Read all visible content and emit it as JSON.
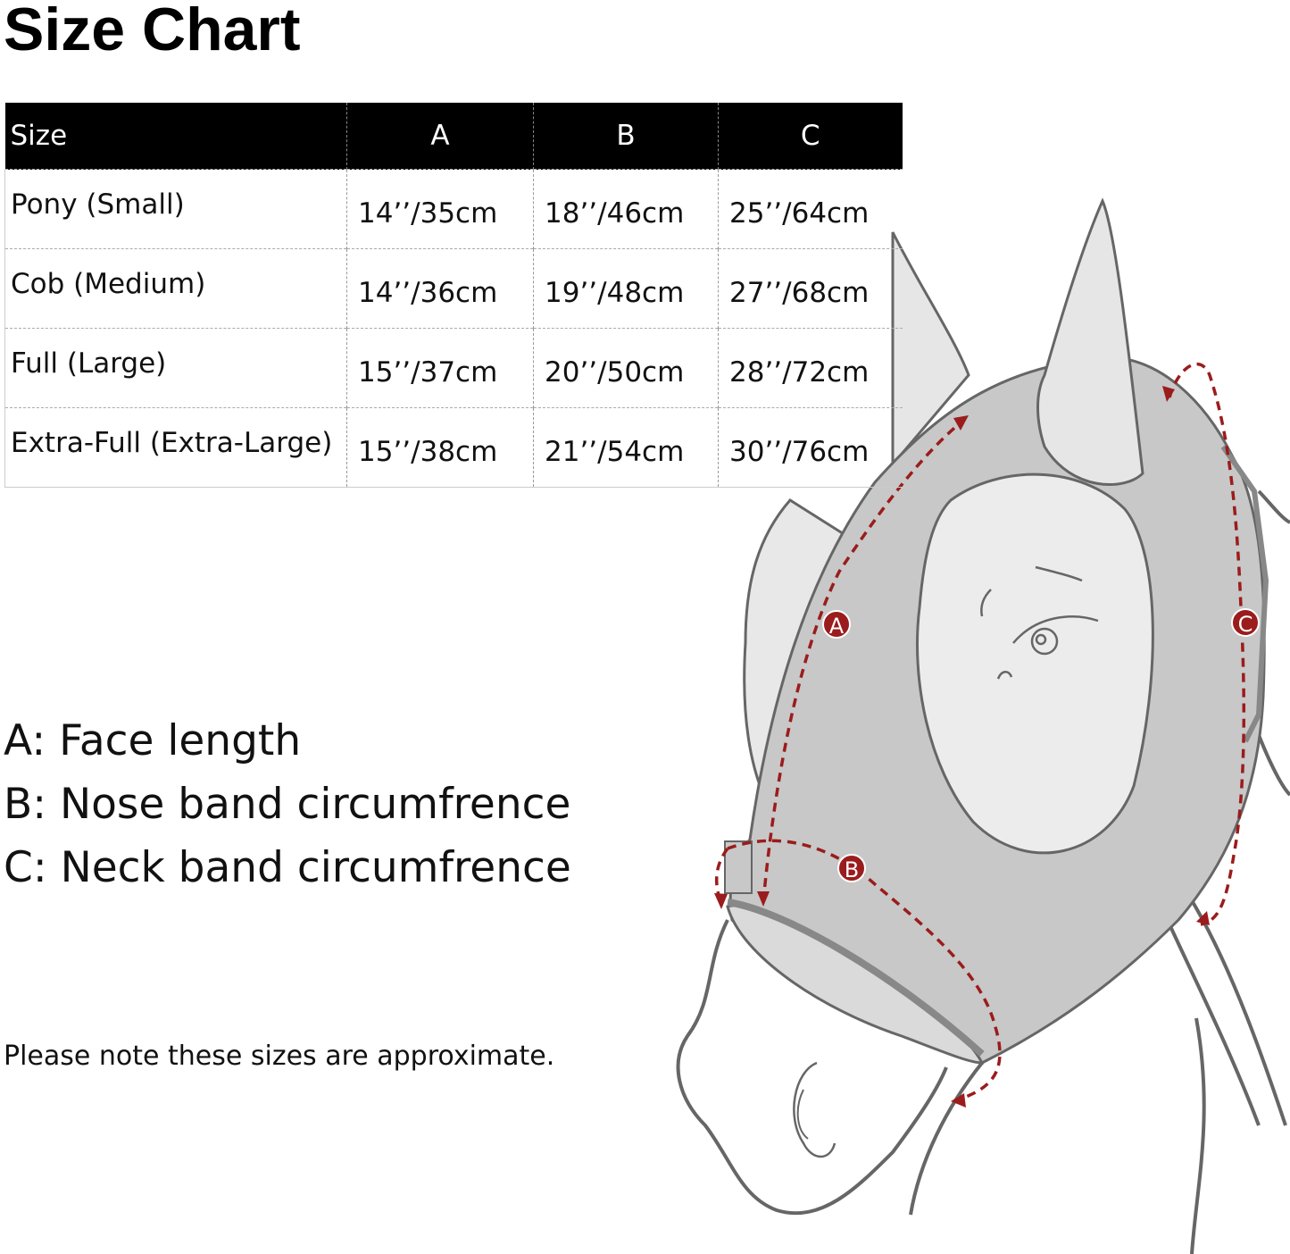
{
  "title": "Size Chart",
  "table": {
    "headers": [
      "Size",
      "A",
      "B",
      "C"
    ],
    "rows": [
      {
        "size": "Pony (Small)",
        "a": "14’’/35cm",
        "b": "18’’/46cm",
        "c": "25’’/64cm"
      },
      {
        "size": "Cob (Medium)",
        "a": "14’’/36cm",
        "b": "19’’/48cm",
        "c": "27’’/68cm"
      },
      {
        "size": "Full (Large)",
        "a": "15’’/37cm",
        "b": "20’’/50cm",
        "c": "28’’/72cm"
      },
      {
        "size": "Extra-Full (Extra-Large)",
        "a": "15’’/38cm",
        "b": "21’’/54cm",
        "c": "30’’/76cm"
      }
    ]
  },
  "legend": [
    "A: Face length",
    "B: Nose band circumfrence",
    "C: Neck band circumfrence"
  ],
  "note": "Please note these sizes are approximate.",
  "diagram": {
    "markers": [
      "A",
      "B",
      "C"
    ],
    "colors": {
      "mask": "#c8c8c8",
      "ears": "#e6e6e6",
      "eye_window": "#ececec",
      "measure": "#9b1c1c",
      "outline": "#666666"
    }
  }
}
